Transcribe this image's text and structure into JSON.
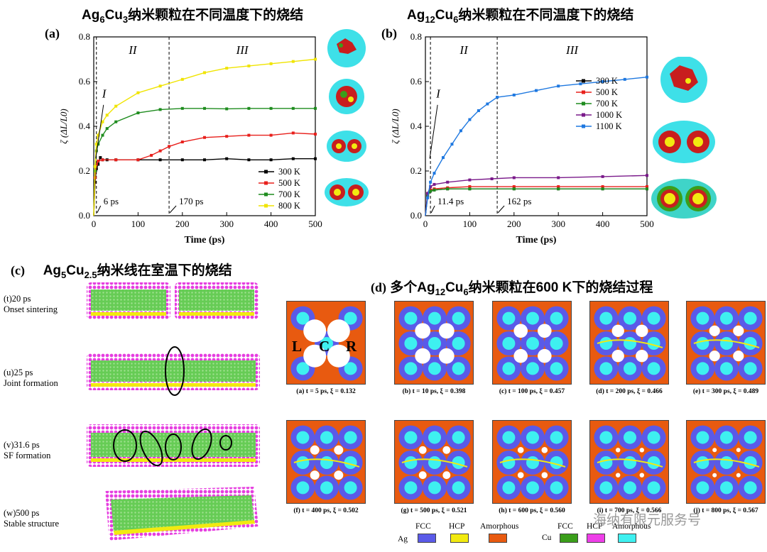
{
  "panel_a": {
    "label": "(a)",
    "title_parts": [
      "Ag",
      "6",
      "Cu",
      "3",
      "纳米颗粒在不同温度下的烧结"
    ],
    "stage_labels": [
      "I",
      "II",
      "III"
    ],
    "annotations": [
      "6 ps",
      "170 ps"
    ],
    "colors": [
      "#000000",
      "#e8201c",
      "#1e8c1e",
      "#f0e400"
    ]
  },
  "panel_b": {
    "label": "(b)",
    "title_parts": [
      "Ag",
      "12",
      "Cu",
      "6",
      "纳米颗粒在不同温度下的烧结"
    ],
    "stage_labels": [
      "I",
      "II",
      "III"
    ],
    "annotations": [
      "11.4 ps",
      "162 ps"
    ],
    "colors": [
      "#000000",
      "#e8201c",
      "#1e8c1e",
      "#7a1a8a",
      "#1e78e0"
    ]
  },
  "panel_c": {
    "label": "(c)",
    "title_parts": [
      "Ag",
      "5",
      "Cu",
      "2.5",
      "纳米线在室温下的烧结"
    ],
    "frames": [
      {
        "label": "(t)20 ps\nOnset sintering"
      },
      {
        "label": "(u)25 ps\nJoint formation"
      },
      {
        "label": "(v)31.6 ps\nSF formation"
      },
      {
        "label": "(w)500 ps\nStable structure"
      }
    ]
  },
  "panel_d": {
    "label": "(d)",
    "title_parts": [
      "多个Ag",
      "12",
      "Cu",
      "6",
      "纳米颗粒在600  K下的烧结过程"
    ],
    "lcr": [
      "L",
      "C",
      "R"
    ],
    "xi_symbol": "ξ",
    "captions": [
      {
        "id": "(a)",
        "t": "t = 5 ps",
        "xi": "0.132"
      },
      {
        "id": "(b)",
        "t": "t = 10 ps",
        "xi": "0.398"
      },
      {
        "id": "(c)",
        "t": "t = 100 ps",
        "xi": "0.457"
      },
      {
        "id": "(d)",
        "t": "t = 200 ps",
        "xi": "0.466"
      },
      {
        "id": "(e)",
        "t": "t = 300 ps",
        "xi": "0.489"
      },
      {
        "id": "(f)",
        "t": "t = 400 ps",
        "xi": "0.502"
      },
      {
        "id": "(g)",
        "t": "t = 500 ps",
        "xi": "0.521"
      },
      {
        "id": "(h)",
        "t": "t = 600 ps",
        "xi": "0.560"
      },
      {
        "id": "(i)",
        "t": "t = 700 ps",
        "xi": "0.566"
      },
      {
        "id": "(j)",
        "t": "t = 800 ps",
        "xi": "0.567"
      }
    ],
    "legend": {
      "ag_label": "Ag",
      "cu_label": "Cu",
      "ag_items": [
        {
          "name": "FCC",
          "color": "#5a5ae8"
        },
        {
          "name": "HCP",
          "color": "#f2ea10"
        },
        {
          "name": "Amorphous",
          "color": "#e85a10"
        }
      ],
      "cu_items": [
        {
          "name": "FCC",
          "color": "#3a9e1a"
        },
        {
          "name": "HCP",
          "color": "#ee3ee8"
        },
        {
          "name": "Amorphous",
          "color": "#3ef0f0"
        }
      ]
    }
  },
  "watermark": "海纳有限元服务号",
  "chart_data": [
    {
      "type": "line",
      "title": "Ag6Cu3纳米颗粒在不同温度下的烧结",
      "xlabel": "Time (ps)",
      "ylabel": "ζ (ΔL/L0)",
      "xlim": [
        0,
        500
      ],
      "ylim": [
        0,
        0.8
      ],
      "xticks": [
        0,
        100,
        200,
        300,
        400,
        500
      ],
      "yticks": [
        0.0,
        0.2,
        0.4,
        0.6,
        0.8
      ],
      "legend_position": "bottom-right",
      "series": [
        {
          "name": "300 K",
          "x": [
            0,
            3,
            6,
            10,
            15,
            20,
            30,
            50,
            100,
            150,
            200,
            250,
            300,
            350,
            400,
            450,
            500
          ],
          "y": [
            0,
            0.15,
            0.21,
            0.23,
            0.26,
            0.25,
            0.25,
            0.25,
            0.25,
            0.25,
            0.25,
            0.25,
            0.255,
            0.25,
            0.25,
            0.255,
            0.255
          ]
        },
        {
          "name": "500 K",
          "x": [
            0,
            3,
            6,
            10,
            20,
            50,
            100,
            130,
            150,
            170,
            200,
            250,
            300,
            350,
            400,
            450,
            500
          ],
          "y": [
            0,
            0.17,
            0.23,
            0.245,
            0.25,
            0.25,
            0.25,
            0.27,
            0.29,
            0.31,
            0.33,
            0.35,
            0.355,
            0.36,
            0.36,
            0.37,
            0.365
          ]
        },
        {
          "name": "700 K",
          "x": [
            0,
            3,
            6,
            10,
            20,
            30,
            50,
            100,
            150,
            200,
            250,
            300,
            350,
            400,
            450,
            500
          ],
          "y": [
            0,
            0.2,
            0.29,
            0.32,
            0.36,
            0.39,
            0.42,
            0.46,
            0.475,
            0.48,
            0.48,
            0.478,
            0.48,
            0.48,
            0.48,
            0.48
          ]
        },
        {
          "name": "800 K",
          "x": [
            0,
            3,
            6,
            10,
            20,
            30,
            50,
            100,
            150,
            200,
            250,
            300,
            350,
            400,
            450,
            500
          ],
          "y": [
            0,
            0.22,
            0.32,
            0.36,
            0.42,
            0.45,
            0.49,
            0.55,
            0.58,
            0.61,
            0.64,
            0.66,
            0.67,
            0.68,
            0.69,
            0.7
          ]
        }
      ],
      "annotations": [
        {
          "text": "6 ps",
          "x": 6
        },
        {
          "text": "170 ps",
          "x": 170
        }
      ]
    },
    {
      "type": "line",
      "title": "Ag12Cu6纳米颗粒在不同温度下的烧结",
      "xlabel": "Time (ps)",
      "ylabel": "ζ (ΔL/L0)",
      "xlim": [
        0,
        500
      ],
      "ylim": [
        0,
        0.8
      ],
      "xticks": [
        0,
        100,
        200,
        300,
        400,
        500
      ],
      "yticks": [
        0.0,
        0.2,
        0.4,
        0.6,
        0.8
      ],
      "legend_position": "center-right",
      "series": [
        {
          "name": "300 K",
          "x": [
            0,
            5,
            11.4,
            20,
            50,
            100,
            200,
            300,
            400,
            500
          ],
          "y": [
            0,
            0.09,
            0.11,
            0.115,
            0.12,
            0.12,
            0.12,
            0.12,
            0.12,
            0.12
          ]
        },
        {
          "name": "500 K",
          "x": [
            0,
            5,
            11.4,
            20,
            50,
            100,
            200,
            300,
            400,
            500
          ],
          "y": [
            0,
            0.1,
            0.115,
            0.12,
            0.125,
            0.13,
            0.13,
            0.13,
            0.13,
            0.13
          ]
        },
        {
          "name": "700 K",
          "x": [
            0,
            5,
            11.4,
            20,
            50,
            100,
            200,
            300,
            400,
            500
          ],
          "y": [
            0,
            0.09,
            0.11,
            0.115,
            0.12,
            0.12,
            0.12,
            0.12,
            0.12,
            0.12
          ]
        },
        {
          "name": "1000 K",
          "x": [
            0,
            5,
            11.4,
            20,
            50,
            100,
            150,
            200,
            300,
            400,
            500
          ],
          "y": [
            0,
            0.1,
            0.13,
            0.14,
            0.15,
            0.16,
            0.165,
            0.17,
            0.17,
            0.175,
            0.18
          ]
        },
        {
          "name": "1100 K",
          "x": [
            0,
            5,
            11.4,
            20,
            40,
            60,
            80,
            100,
            120,
            140,
            162,
            200,
            250,
            300,
            350,
            400,
            450,
            500
          ],
          "y": [
            0,
            0.08,
            0.15,
            0.19,
            0.26,
            0.32,
            0.38,
            0.43,
            0.47,
            0.5,
            0.53,
            0.54,
            0.56,
            0.58,
            0.59,
            0.6,
            0.61,
            0.62
          ]
        }
      ],
      "annotations": [
        {
          "text": "11.4 ps",
          "x": 11.4
        },
        {
          "text": "162 ps",
          "x": 162
        }
      ]
    }
  ]
}
